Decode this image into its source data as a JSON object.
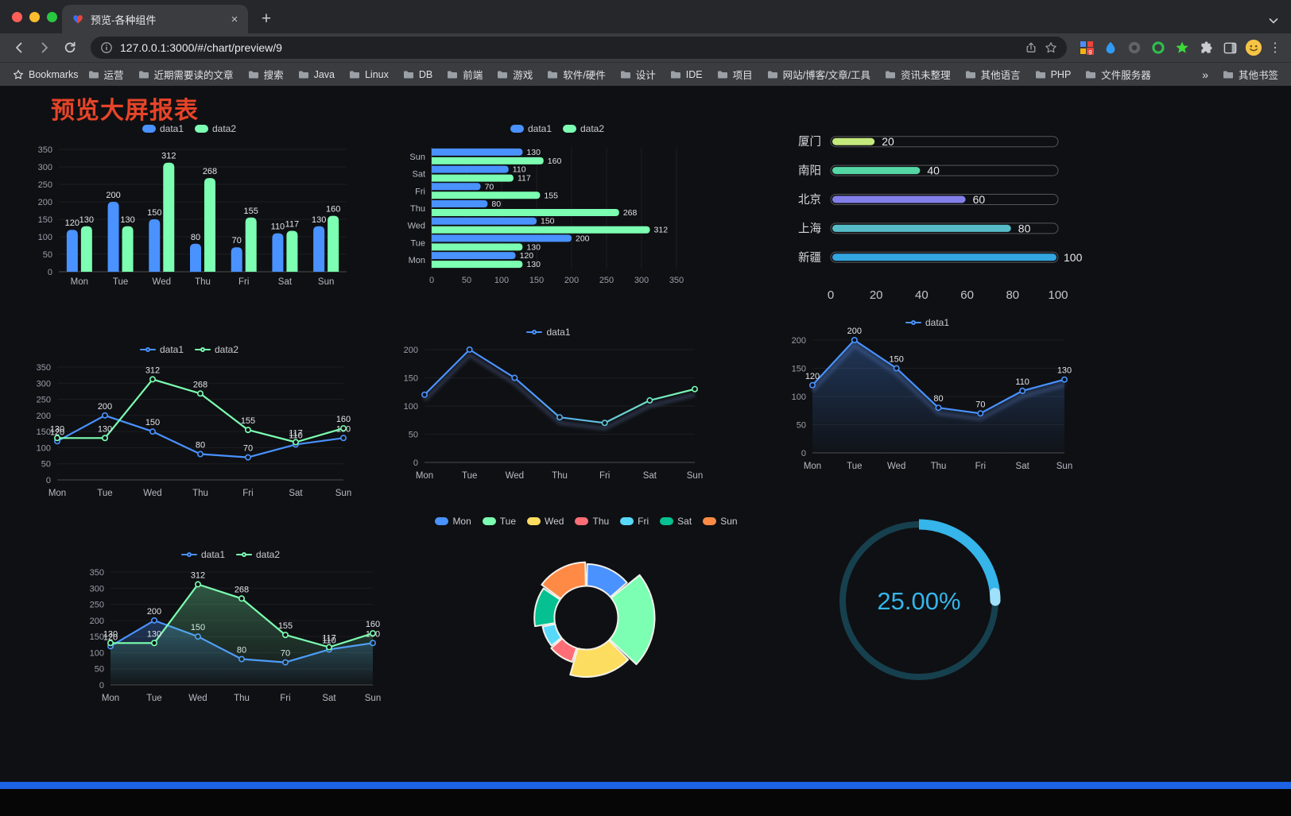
{
  "browser": {
    "tab": {
      "title": "预览-各种组件",
      "close": "×",
      "new_tab": "+"
    },
    "nav": {
      "url": "127.0.0.1:3000/#/chart/preview/9"
    },
    "bookmarks_bar": {
      "bookmarks_label": "Bookmarks",
      "items": [
        "运营",
        "近期需要读的文章",
        "搜索",
        "Java",
        "Linux",
        "DB",
        "前端",
        "游戏",
        "软件/硬件",
        "设计",
        "IDE",
        "项目",
        "网站/博客/文章/工具",
        "资讯未整理",
        "其他语言",
        "PHP",
        "文件服务器"
      ],
      "overflow": "»",
      "other_bookmarks": "其他书签"
    }
  },
  "page": {
    "title": "预览大屏报表",
    "title_color": "#e64428"
  },
  "charts": {
    "categories": [
      "Mon",
      "Tue",
      "Wed",
      "Thu",
      "Fri",
      "Sat",
      "Sun"
    ],
    "palette": [
      "#4992ff",
      "#7cffb2",
      "#fddd60",
      "#ff6e76",
      "#58d9f9",
      "#05c091",
      "#ff8a45"
    ],
    "bar_grouped": {
      "type": "bar",
      "yMax": 350,
      "yStep": 50,
      "series": [
        {
          "name": "data1",
          "color": "#4992ff",
          "values": [
            120,
            200,
            150,
            80,
            70,
            110,
            130
          ]
        },
        {
          "name": "data2",
          "color": "#7cffb2",
          "values": [
            130,
            130,
            312,
            268,
            155,
            117,
            160
          ]
        }
      ]
    },
    "hbar_grouped": {
      "type": "hbar",
      "xMax": 350,
      "xStep": 50,
      "series": [
        {
          "name": "data1",
          "color": "#4992ff",
          "values": [
            120,
            200,
            150,
            80,
            70,
            110,
            130
          ]
        },
        {
          "name": "data2",
          "color": "#7cffb2",
          "values": [
            130,
            130,
            312,
            268,
            155,
            117,
            160
          ]
        }
      ]
    },
    "capsule": {
      "type": "capsule",
      "max": 100,
      "axis": [
        0,
        20,
        40,
        60,
        80,
        100
      ],
      "rows": [
        {
          "label": "厦门",
          "value": 20,
          "color": "#c4e97d"
        },
        {
          "label": "南阳",
          "value": 40,
          "color": "#55d6a5"
        },
        {
          "label": "北京",
          "value": 60,
          "color": "#837fe8"
        },
        {
          "label": "上海",
          "value": 80,
          "color": "#56bdc8"
        },
        {
          "label": "新疆",
          "value": 100,
          "color": "#33a6e2"
        }
      ]
    },
    "line_two": {
      "type": "line",
      "yMax": 350,
      "yStep": 50,
      "series": [
        {
          "name": "data1",
          "color": "#4992ff",
          "labels": true,
          "values": [
            120,
            200,
            150,
            80,
            70,
            110,
            130
          ]
        },
        {
          "name": "data2",
          "color": "#7cffb2",
          "labels": true,
          "values": [
            130,
            130,
            312,
            268,
            155,
            117,
            160
          ]
        }
      ]
    },
    "line_gradient": {
      "type": "line",
      "yMax": 200,
      "yStep": 50,
      "series": [
        {
          "name": "data1",
          "color": "#4992ff",
          "gradientTo": "#7cffb2",
          "shadow": true,
          "values": [
            120,
            200,
            150,
            80,
            70,
            110,
            130
          ]
        }
      ]
    },
    "line_area": {
      "type": "line",
      "yMax": 200,
      "yStep": 50,
      "series": [
        {
          "name": "data1",
          "color": "#4992ff",
          "area": true,
          "labels": true,
          "shadow": true,
          "values": [
            120,
            200,
            150,
            80,
            70,
            110,
            130
          ]
        }
      ]
    },
    "line_area_two": {
      "type": "line",
      "yMax": 350,
      "yStep": 50,
      "series": [
        {
          "name": "data1",
          "color": "#4992ff",
          "area": true,
          "labels": true,
          "values": [
            120,
            200,
            150,
            80,
            70,
            110,
            130
          ]
        },
        {
          "name": "data2",
          "color": "#7cffb2",
          "area": true,
          "labels": true,
          "values": [
            130,
            130,
            312,
            268,
            155,
            117,
            160
          ]
        }
      ]
    },
    "rose": {
      "type": "rose",
      "labels": [
        "Mon",
        "Tue",
        "Wed",
        "Thu",
        "Fri",
        "Sat",
        "Sun"
      ],
      "values": [
        120,
        200,
        150,
        80,
        70,
        110,
        130
      ],
      "colors": [
        "#4992ff",
        "#7cffb2",
        "#fddd60",
        "#ff6e76",
        "#58d9f9",
        "#05c091",
        "#ff8a45"
      ]
    },
    "gauge": {
      "type": "gauge",
      "percent": 25,
      "text": "25.00%",
      "color": "#35b5ea",
      "track_color": "#16404e",
      "cap_color": "#9fe0fa"
    }
  }
}
